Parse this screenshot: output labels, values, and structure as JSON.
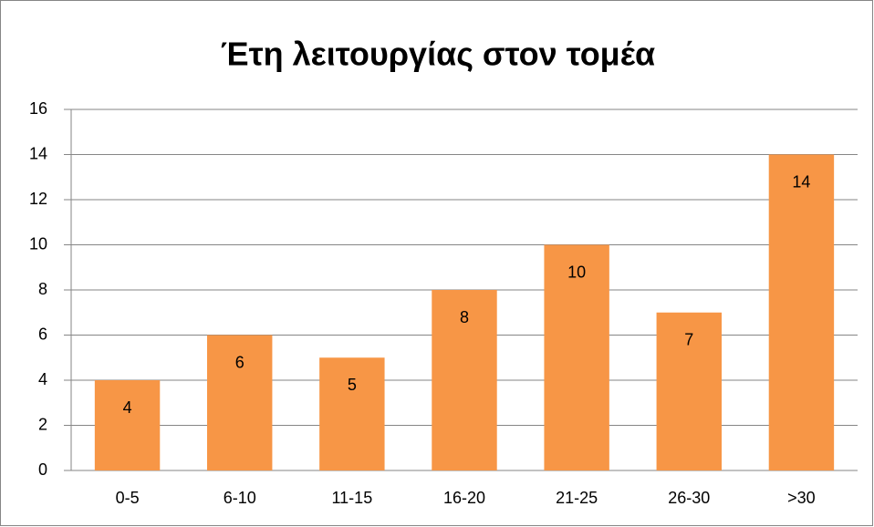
{
  "chart_data": {
    "type": "bar",
    "title": "Έτη λειτουργίας στον τομέα",
    "categories": [
      "0-5",
      "6-10",
      "11-15",
      "16-20",
      "21-25",
      "26-30",
      ">30"
    ],
    "values": [
      4,
      6,
      5,
      8,
      10,
      7,
      14
    ],
    "color": "#f79646",
    "ylim": [
      0,
      16
    ],
    "yticks": [
      0,
      2,
      4,
      6,
      8,
      10,
      12,
      14,
      16
    ],
    "grid": true,
    "data_labels": true
  }
}
